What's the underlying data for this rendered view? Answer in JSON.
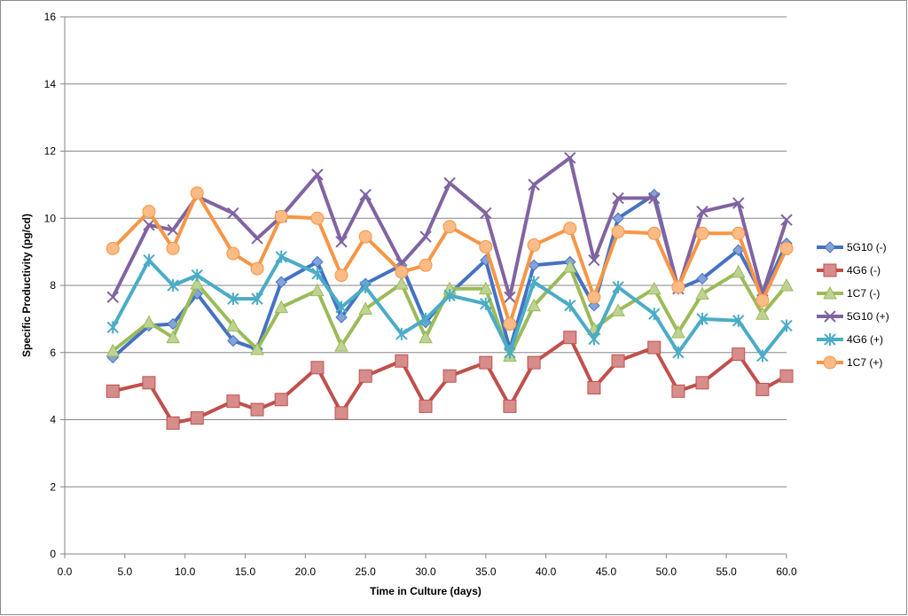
{
  "chart_data": {
    "type": "line",
    "title": "",
    "xlabel": "Time in Culture (days)",
    "ylabel": "Specific Productivity (pg/cd)",
    "xlim": [
      0,
      60
    ],
    "ylim": [
      0,
      16
    ],
    "x_ticks": [
      "0.0",
      "5.0",
      "10.0",
      "15.0",
      "20.0",
      "25.0",
      "30.0",
      "35.0",
      "40.0",
      "45.0",
      "50.0",
      "55.0",
      "60.0"
    ],
    "y_ticks": [
      "0",
      "2",
      "4",
      "6",
      "8",
      "10",
      "12",
      "14",
      "16"
    ],
    "grid": "horizontal",
    "legend_position": "right",
    "x": [
      4,
      7,
      9,
      11,
      14,
      16,
      18,
      21,
      23,
      25,
      28,
      30,
      32,
      35,
      37,
      39,
      42,
      44,
      46,
      49,
      51,
      53,
      56,
      58,
      60
    ],
    "series": [
      {
        "name": "5G10 (-)",
        "color": "#4472c4",
        "marker": "diamond",
        "values": [
          5.85,
          6.8,
          6.85,
          7.75,
          6.35,
          6.1,
          8.1,
          8.7,
          7.05,
          8.05,
          8.6,
          6.9,
          7.75,
          8.75,
          6.1,
          8.6,
          8.7,
          7.4,
          10.0,
          10.7,
          7.9,
          8.2,
          9.05,
          7.7,
          9.25
        ]
      },
      {
        "name": "4G6 (-)",
        "color": "#c0504d",
        "marker": "square",
        "values": [
          4.85,
          5.1,
          3.9,
          4.05,
          4.55,
          4.3,
          4.6,
          5.55,
          4.2,
          5.3,
          5.75,
          4.4,
          5.3,
          5.7,
          4.4,
          5.7,
          6.45,
          4.95,
          5.75,
          6.15,
          4.85,
          5.1,
          5.95,
          4.9,
          5.3
        ]
      },
      {
        "name": "1C7 (-)",
        "color": "#9bbb59",
        "marker": "triangle",
        "values": [
          6.05,
          6.9,
          6.45,
          8.05,
          6.8,
          6.1,
          7.35,
          7.85,
          6.2,
          7.3,
          8.05,
          6.45,
          7.9,
          7.9,
          5.9,
          7.4,
          8.55,
          6.7,
          7.25,
          7.9,
          6.6,
          7.75,
          8.4,
          7.15,
          8.0
        ]
      },
      {
        "name": "5G10 (+)",
        "color": "#8064a2",
        "marker": "x",
        "values": [
          7.65,
          9.8,
          9.65,
          10.65,
          10.15,
          9.4,
          10.05,
          11.3,
          9.3,
          10.7,
          8.65,
          9.45,
          11.05,
          10.15,
          7.65,
          11.0,
          11.8,
          8.75,
          10.6,
          10.6,
          7.9,
          10.2,
          10.45,
          7.75,
          9.95
        ]
      },
      {
        "name": "4G6 (+)",
        "color": "#4bacc6",
        "marker": "star",
        "values": [
          6.75,
          8.75,
          8.0,
          8.3,
          7.6,
          7.6,
          8.85,
          8.35,
          7.35,
          7.95,
          6.55,
          7.0,
          7.7,
          7.45,
          6.0,
          8.1,
          7.4,
          6.4,
          7.95,
          7.15,
          6.0,
          7.0,
          6.95,
          5.9,
          6.8
        ]
      },
      {
        "name": "1C7 (+)",
        "color": "#f79646",
        "marker": "circle",
        "values": [
          9.1,
          10.2,
          9.1,
          10.75,
          8.95,
          8.5,
          10.05,
          10.0,
          8.3,
          9.45,
          8.4,
          8.6,
          9.75,
          9.15,
          6.85,
          9.2,
          9.7,
          7.65,
          9.6,
          9.55,
          7.95,
          9.55,
          9.55,
          7.55,
          9.1
        ]
      }
    ]
  }
}
